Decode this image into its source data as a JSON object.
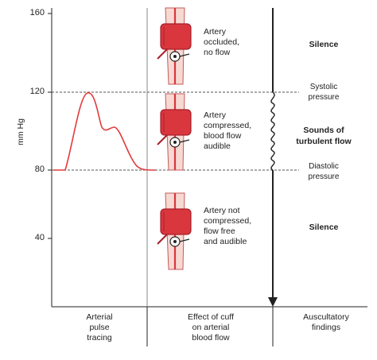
{
  "y_axis": {
    "label": "mm Hg",
    "ticks": [
      "160",
      "120",
      "80",
      "40"
    ]
  },
  "arm_panels": [
    {
      "text_lines": [
        "Artery",
        "occluded,",
        "no flow"
      ],
      "state": "occluded"
    },
    {
      "text_lines": [
        "Artery",
        "compressed,",
        "blood flow",
        "audible"
      ],
      "state": "compressed"
    },
    {
      "text_lines": [
        "Artery not",
        "compressed,",
        "flow free",
        "and audible"
      ],
      "state": "free"
    }
  ],
  "findings": {
    "top": "Silence",
    "middle_lines": [
      "Sounds of",
      "turbulent flow"
    ],
    "bottom": "Silence"
  },
  "pressure_labels": {
    "systolic_lines": [
      "Systolic",
      "pressure"
    ],
    "diastolic_lines": [
      "Diastolic",
      "pressure"
    ]
  },
  "columns": {
    "col1_lines": [
      "Arterial",
      "pulse",
      "tracing"
    ],
    "col2_lines": [
      "Effect of cuff",
      "on arterial",
      "blood flow"
    ],
    "col3_lines": [
      "Auscultatory",
      "findings"
    ]
  },
  "colors": {
    "pulse": "#e23b3b",
    "cuff": "#d9363e",
    "cuff_dark": "#a8202a",
    "arm_fill": "#f7d9d3",
    "arm_stroke": "#c45a5a",
    "line": "#222222",
    "grid": "#555555"
  }
}
